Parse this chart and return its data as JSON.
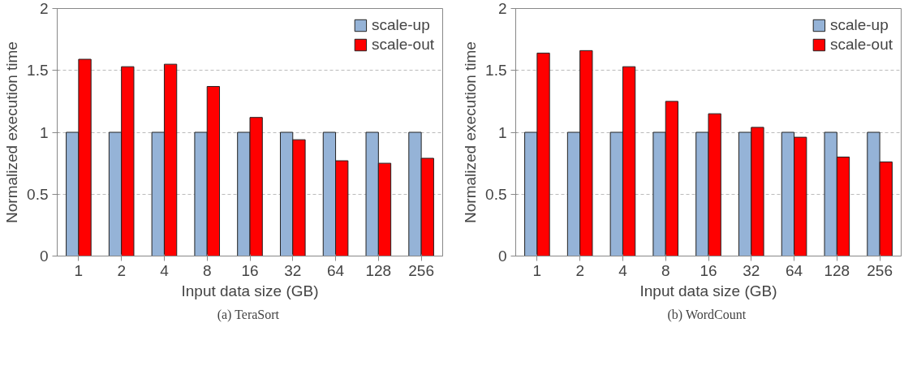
{
  "chart_data": [
    {
      "type": "bar",
      "xlabel": "Input data size (GB)",
      "ylabel": "Normalized execution time",
      "annotations": [
        "(a)  TeraSort"
      ],
      "categories": [
        "1",
        "2",
        "4",
        "8",
        "16",
        "32",
        "64",
        "128",
        "256"
      ],
      "ylim": [
        0,
        2
      ],
      "yticks": [
        0,
        0.5,
        1,
        1.5,
        2
      ],
      "grid": "y",
      "legend": "top right",
      "series": [
        {
          "name": "scale-up",
          "color": "#95b3d7",
          "values": [
            1,
            1,
            1,
            1,
            1,
            1,
            1,
            1,
            1
          ]
        },
        {
          "name": "scale-out",
          "color": "#ff0000",
          "values": [
            1.59,
            1.53,
            1.55,
            1.37,
            1.12,
            0.94,
            0.77,
            0.75,
            0.79
          ]
        }
      ]
    },
    {
      "type": "bar",
      "xlabel": "Input data size (GB)",
      "ylabel": "Normalized execution time",
      "annotations": [
        "(b)  WordCount"
      ],
      "categories": [
        "1",
        "2",
        "4",
        "8",
        "16",
        "32",
        "64",
        "128",
        "256"
      ],
      "ylim": [
        0,
        2
      ],
      "yticks": [
        0,
        0.5,
        1,
        1.5,
        2
      ],
      "grid": "y",
      "legend": "top right",
      "series": [
        {
          "name": "scale-up",
          "color": "#95b3d7",
          "values": [
            1,
            1,
            1,
            1,
            1,
            1,
            1,
            1,
            1
          ]
        },
        {
          "name": "scale-out",
          "color": "#ff0000",
          "values": [
            1.64,
            1.66,
            1.53,
            1.25,
            1.15,
            1.04,
            0.96,
            0.8,
            0.76
          ]
        }
      ]
    }
  ]
}
